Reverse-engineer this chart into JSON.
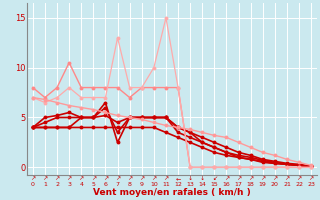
{
  "bg_color": "#cbe9ef",
  "grid_color": "#ffffff",
  "xlabel": "Vent moyen/en rafales ( km/h )",
  "xlabel_color": "#cc0000",
  "tick_color": "#cc0000",
  "xlim": [
    -0.5,
    23.5
  ],
  "ylim": [
    -0.8,
    16.5
  ],
  "yticks": [
    0,
    5,
    10,
    15
  ],
  "lines": [
    {
      "x": [
        0,
        1,
        2,
        3,
        4,
        5,
        6,
        7,
        8,
        9,
        10,
        11,
        12,
        13,
        14,
        15,
        16,
        17,
        18,
        19,
        20,
        21,
        22,
        23
      ],
      "y": [
        4,
        4,
        4,
        4,
        4,
        4,
        4,
        4,
        4,
        4,
        4,
        3.5,
        3,
        2.5,
        2,
        1.5,
        1.2,
        1,
        0.8,
        0.5,
        0.4,
        0.3,
        0.2,
        0.1
      ],
      "color": "#cc0000",
      "lw": 1.2,
      "marker": "o",
      "ms": 1.8
    },
    {
      "x": [
        0,
        1,
        2,
        3,
        4,
        5,
        6,
        7,
        8,
        9,
        10,
        11,
        12,
        13,
        14,
        15,
        16,
        17,
        18,
        19,
        20,
        21,
        22,
        23
      ],
      "y": [
        4,
        4,
        4,
        4,
        5,
        5,
        5.2,
        4.5,
        5,
        5,
        5,
        5,
        4,
        3.5,
        3,
        2.5,
        2,
        1.5,
        1.2,
        0.8,
        0.6,
        0.4,
        0.3,
        0.1
      ],
      "color": "#cc0000",
      "lw": 1.2,
      "marker": "o",
      "ms": 1.8
    },
    {
      "x": [
        0,
        1,
        2,
        3,
        4,
        5,
        6,
        7,
        8,
        9,
        10,
        11,
        12,
        13,
        14,
        15,
        16,
        17,
        18,
        19,
        20,
        21,
        22,
        23
      ],
      "y": [
        4,
        4.5,
        5,
        5,
        5,
        5,
        6,
        3.5,
        5,
        5,
        5,
        5,
        4,
        3.5,
        2.5,
        2,
        1.5,
        1.2,
        1,
        0.7,
        0.5,
        0.3,
        0.2,
        0.1
      ],
      "color": "#cc0000",
      "lw": 1.2,
      "marker": "o",
      "ms": 1.8
    },
    {
      "x": [
        0,
        1,
        2,
        3,
        4,
        5,
        6,
        7,
        8,
        9,
        10,
        11,
        12,
        13,
        14,
        15,
        16,
        17,
        18,
        19,
        20,
        21,
        22,
        23
      ],
      "y": [
        4,
        5,
        5.2,
        5.5,
        5,
        5,
        6.5,
        2.5,
        5,
        5,
        5,
        5,
        3.5,
        3,
        2.5,
        2,
        1.5,
        1,
        0.8,
        0.6,
        0.4,
        0.3,
        0.2,
        0.1
      ],
      "color": "#cc0000",
      "lw": 1.2,
      "marker": "o",
      "ms": 1.8
    },
    {
      "x": [
        0,
        1,
        2,
        3,
        4,
        5,
        6,
        7,
        8,
        9,
        10,
        11,
        12,
        13,
        14,
        15,
        16,
        17,
        18,
        19,
        20,
        21,
        22,
        23
      ],
      "y": [
        8,
        7,
        8,
        10.5,
        8,
        8,
        8,
        8,
        7,
        8,
        8,
        8,
        8,
        0,
        0,
        0,
        0,
        0,
        0,
        0,
        0,
        0,
        0,
        0
      ],
      "color": "#ff8888",
      "lw": 1.0,
      "marker": "o",
      "ms": 1.8
    },
    {
      "x": [
        0,
        1,
        2,
        3,
        4,
        5,
        6,
        7,
        8,
        9,
        10,
        11,
        12,
        13,
        14,
        15,
        16,
        17,
        18,
        19,
        20,
        21,
        22,
        23
      ],
      "y": [
        7,
        6.5,
        7,
        8,
        7,
        7,
        7,
        13,
        8,
        8,
        10,
        15,
        8,
        0,
        0,
        0,
        0,
        0,
        0,
        0,
        0,
        0,
        0,
        0
      ],
      "color": "#ffaaaa",
      "lw": 0.9,
      "marker": "o",
      "ms": 1.8
    },
    {
      "x": [
        0,
        1,
        2,
        3,
        4,
        5,
        6,
        7,
        8,
        9,
        10,
        11,
        12,
        13,
        14,
        15,
        16,
        17,
        18,
        19,
        20,
        21,
        22,
        23
      ],
      "y": [
        7,
        6.8,
        6.5,
        6.2,
        6,
        5.8,
        5.5,
        5.2,
        5,
        4.8,
        4.5,
        4.2,
        4,
        3.8,
        3.5,
        3.2,
        3,
        2.5,
        2,
        1.5,
        1.2,
        0.8,
        0.5,
        0.2
      ],
      "color": "#ff9999",
      "lw": 1.0,
      "marker": "o",
      "ms": 1.8
    }
  ],
  "arrow_symbols": [
    "↗",
    "↗",
    "↗",
    "↗",
    "↗",
    "↗",
    "↗",
    "↗",
    "↗",
    "↗",
    "↗",
    "↗",
    "←",
    "↓",
    "↓",
    "↙",
    "↗",
    "↗",
    "↗",
    "↗",
    "↗",
    "↗",
    "↗",
    "↗"
  ]
}
